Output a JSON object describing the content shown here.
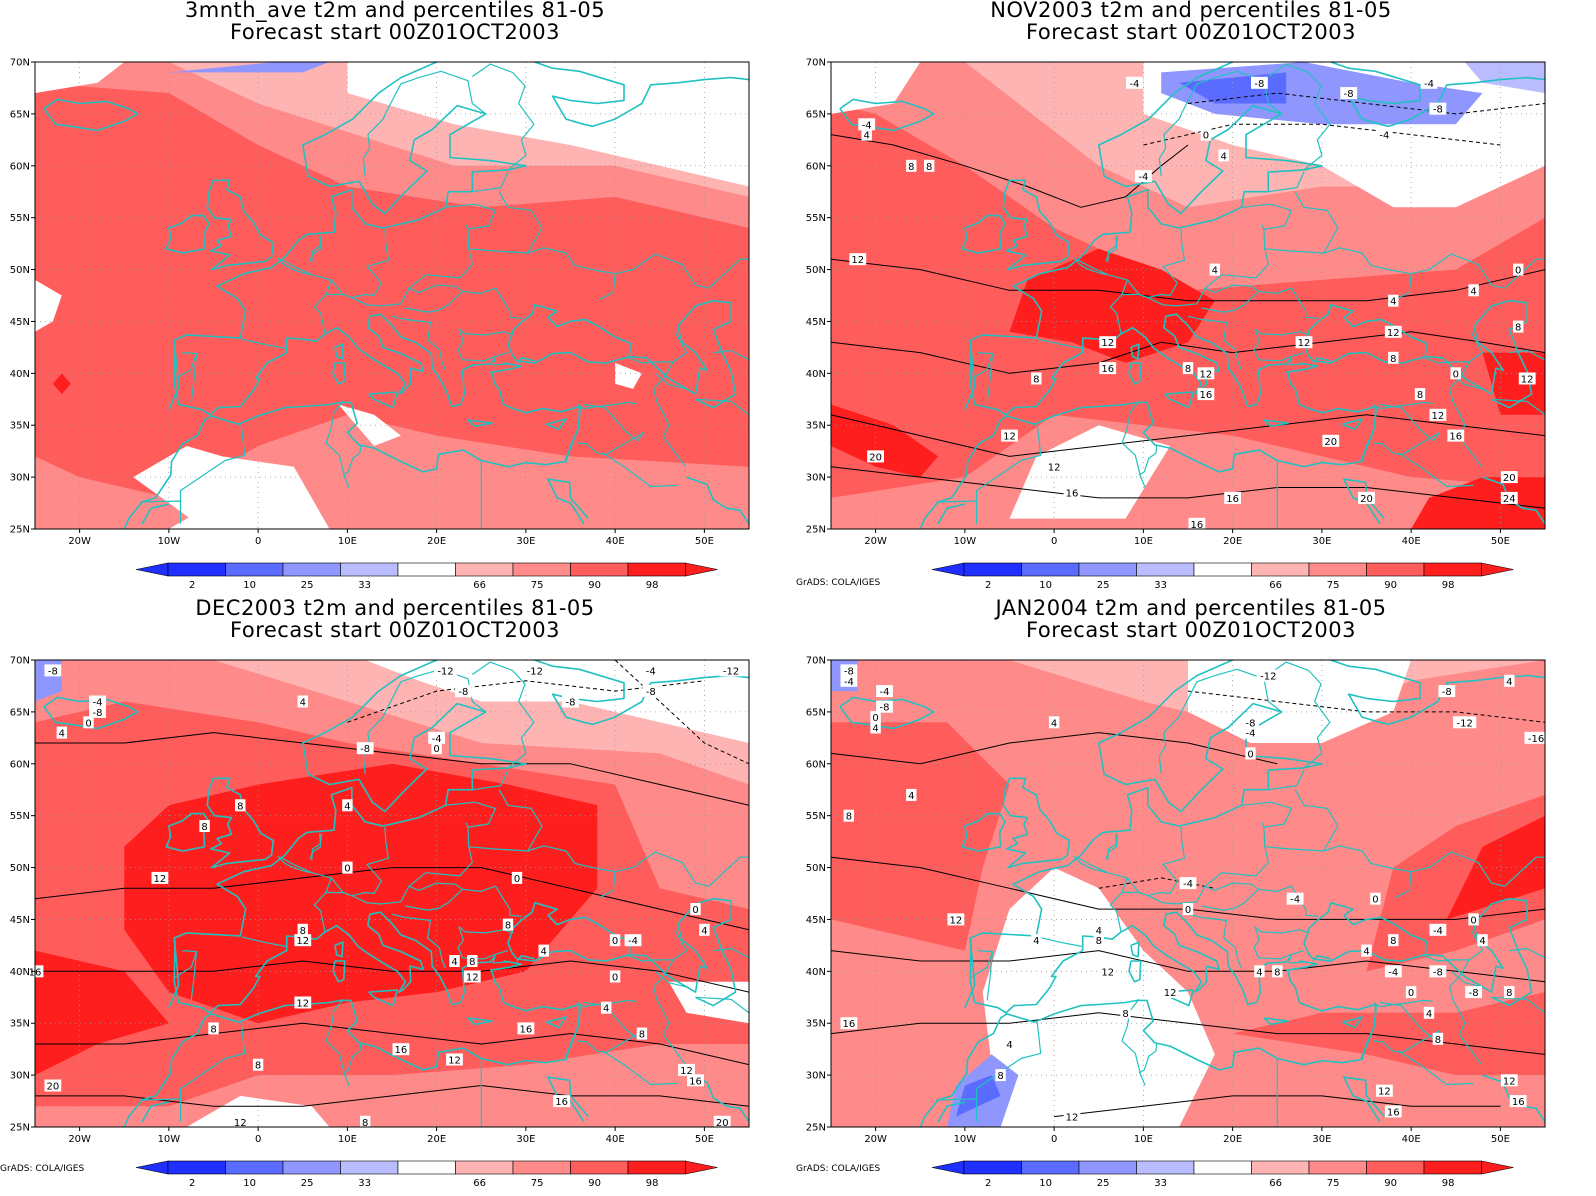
{
  "credit": "GrADS: COLA/IGES",
  "palette": {
    "p2": "#1f2fff",
    "p10": "#5a6bff",
    "p25": "#8f97ff",
    "p33": "#b9bdff",
    "mid": "#ffffff",
    "p66": "#ffb4b4",
    "p75": "#ff8a8a",
    "p90": "#ff5c5c",
    "p98": "#ff1e1e",
    "coast": "#22c1c1",
    "contour": "#000000"
  },
  "colorbar": {
    "labels": [
      "2",
      "10",
      "25",
      "33",
      "66",
      "75",
      "90",
      "98"
    ]
  },
  "axes": {
    "lon_ticks": [
      "20W",
      "10W",
      "0",
      "10E",
      "20E",
      "30E",
      "40E",
      "50E"
    ],
    "lat_ticks": [
      "70N",
      "65N",
      "60N",
      "55N",
      "50N",
      "45N",
      "40N",
      "35N",
      "30N",
      "25N"
    ],
    "lon_range": [
      -25,
      55
    ],
    "lat_range": [
      25,
      70
    ]
  },
  "panels": [
    {
      "title1": "3mnth_ave t2m and percentiles 81-05",
      "title2": "Forecast start 00Z01OCT2003",
      "show_credit": false,
      "contour_labels": []
    },
    {
      "title1": "NOV2003 t2m and percentiles 81-05",
      "title2": "Forecast start 00Z01OCT2003",
      "show_credit": true,
      "contour_labels": [
        {
          "lon": 33,
          "lat": 67,
          "text": "-8"
        },
        {
          "lon": 23,
          "lat": 68,
          "text": "-8"
        },
        {
          "lon": 17,
          "lat": 63,
          "text": "0"
        },
        {
          "lon": 10,
          "lat": 59,
          "text": "-4"
        },
        {
          "lon": 19,
          "lat": 61,
          "text": "4"
        },
        {
          "lon": 42,
          "lat": 68,
          "text": "-4"
        },
        {
          "lon": 43,
          "lat": 65.5,
          "text": "-8"
        },
        {
          "lon": 37,
          "lat": 63,
          "text": "-4"
        },
        {
          "lon": 9,
          "lat": 68,
          "text": "-4"
        },
        {
          "lon": -21,
          "lat": 64,
          "text": "-4"
        },
        {
          "lon": -21,
          "lat": 63,
          "text": "4"
        },
        {
          "lon": -16,
          "lat": 60,
          "text": "8"
        },
        {
          "lon": -14,
          "lat": 60,
          "text": "8"
        },
        {
          "lon": -22,
          "lat": 51,
          "text": "12"
        },
        {
          "lon": 18,
          "lat": 50,
          "text": "4"
        },
        {
          "lon": 38,
          "lat": 47,
          "text": "4"
        },
        {
          "lon": 47,
          "lat": 48,
          "text": "4"
        },
        {
          "lon": 52,
          "lat": 50,
          "text": "0"
        },
        {
          "lon": 52,
          "lat": 44.5,
          "text": "8"
        },
        {
          "lon": 6,
          "lat": 43,
          "text": "12"
        },
        {
          "lon": 6,
          "lat": 40.5,
          "text": "16"
        },
        {
          "lon": 38,
          "lat": 44,
          "text": "12"
        },
        {
          "lon": 28,
          "lat": 43,
          "text": "12"
        },
        {
          "lon": 38,
          "lat": 41.5,
          "text": "8"
        },
        {
          "lon": 45,
          "lat": 40,
          "text": "0"
        },
        {
          "lon": 53,
          "lat": 39.5,
          "text": "12"
        },
        {
          "lon": 15,
          "lat": 40.5,
          "text": "8"
        },
        {
          "lon": 17,
          "lat": 40,
          "text": "12"
        },
        {
          "lon": 17,
          "lat": 38,
          "text": "16"
        },
        {
          "lon": -2,
          "lat": 39.5,
          "text": "8"
        },
        {
          "lon": 41,
          "lat": 38,
          "text": "8"
        },
        {
          "lon": 43,
          "lat": 36,
          "text": "12"
        },
        {
          "lon": 45,
          "lat": 34,
          "text": "16"
        },
        {
          "lon": -5,
          "lat": 34,
          "text": "12"
        },
        {
          "lon": -20,
          "lat": 32,
          "text": "20"
        },
        {
          "lon": 0,
          "lat": 31,
          "text": "12"
        },
        {
          "lon": 2,
          "lat": 28.5,
          "text": "16"
        },
        {
          "lon": 31,
          "lat": 33.5,
          "text": "20"
        },
        {
          "lon": 51,
          "lat": 30,
          "text": "20"
        },
        {
          "lon": 20,
          "lat": 28,
          "text": "16"
        },
        {
          "lon": 16,
          "lat": 25.5,
          "text": "16"
        },
        {
          "lon": 35,
          "lat": 28,
          "text": "20"
        },
        {
          "lon": 51,
          "lat": 28,
          "text": "24"
        }
      ]
    },
    {
      "title1": "DEC2003 t2m and percentiles 81-05",
      "title2": "Forecast start 00Z01OCT2003",
      "show_credit": true,
      "contour_labels": [
        {
          "lon": -23,
          "lat": 69,
          "text": "-8"
        },
        {
          "lon": -18,
          "lat": 66,
          "text": "-4"
        },
        {
          "lon": -18,
          "lat": 65,
          "text": "-8"
        },
        {
          "lon": -19,
          "lat": 64,
          "text": "0"
        },
        {
          "lon": -22,
          "lat": 63,
          "text": "4"
        },
        {
          "lon": 5,
          "lat": 66,
          "text": "4"
        },
        {
          "lon": 12,
          "lat": 61.5,
          "text": "-8"
        },
        {
          "lon": 21,
          "lat": 69,
          "text": "-12"
        },
        {
          "lon": 23,
          "lat": 67,
          "text": "-8"
        },
        {
          "lon": 20,
          "lat": 62.5,
          "text": "-4"
        },
        {
          "lon": 20,
          "lat": 61.5,
          "text": "0"
        },
        {
          "lon": 31,
          "lat": 69,
          "text": "-12"
        },
        {
          "lon": 35,
          "lat": 66,
          "text": "-8"
        },
        {
          "lon": 44,
          "lat": 69,
          "text": "-4"
        },
        {
          "lon": 44,
          "lat": 67,
          "text": "-8"
        },
        {
          "lon": 53,
          "lat": 69,
          "text": "-12"
        },
        {
          "lon": -2,
          "lat": 56,
          "text": "8"
        },
        {
          "lon": -6,
          "lat": 54,
          "text": "8"
        },
        {
          "lon": 10,
          "lat": 56,
          "text": "4"
        },
        {
          "lon": 10,
          "lat": 50,
          "text": "0"
        },
        {
          "lon": 29,
          "lat": 49,
          "text": "0"
        },
        {
          "lon": -11,
          "lat": 49,
          "text": "12"
        },
        {
          "lon": 28,
          "lat": 44.5,
          "text": "8"
        },
        {
          "lon": 42,
          "lat": 43,
          "text": "-4"
        },
        {
          "lon": 40,
          "lat": 43,
          "text": "0"
        },
        {
          "lon": 49,
          "lat": 46,
          "text": "0"
        },
        {
          "lon": 50,
          "lat": 44,
          "text": "4"
        },
        {
          "lon": 32,
          "lat": 42,
          "text": "4"
        },
        {
          "lon": 22,
          "lat": 41,
          "text": "4"
        },
        {
          "lon": 24,
          "lat": 41,
          "text": "8"
        },
        {
          "lon": 24,
          "lat": 39.5,
          "text": "12"
        },
        {
          "lon": 40,
          "lat": 39.5,
          "text": "0"
        },
        {
          "lon": 5,
          "lat": 44,
          "text": "8"
        },
        {
          "lon": 5,
          "lat": 43,
          "text": "12"
        },
        {
          "lon": -25,
          "lat": 40,
          "text": "16"
        },
        {
          "lon": 5,
          "lat": 37,
          "text": "12"
        },
        {
          "lon": 39,
          "lat": 36.5,
          "text": "4"
        },
        {
          "lon": -5,
          "lat": 34.5,
          "text": "8"
        },
        {
          "lon": 30,
          "lat": 34.5,
          "text": "16"
        },
        {
          "lon": 43,
          "lat": 34,
          "text": "8"
        },
        {
          "lon": 16,
          "lat": 32.5,
          "text": "16"
        },
        {
          "lon": 22,
          "lat": 31.5,
          "text": "12"
        },
        {
          "lon": 0,
          "lat": 31,
          "text": "8"
        },
        {
          "lon": 48,
          "lat": 30.5,
          "text": "12"
        },
        {
          "lon": 49,
          "lat": 29.5,
          "text": "16"
        },
        {
          "lon": 34,
          "lat": 27.5,
          "text": "16"
        },
        {
          "lon": -23,
          "lat": 29,
          "text": "20"
        },
        {
          "lon": 52,
          "lat": 25.5,
          "text": "20"
        },
        {
          "lon": -2,
          "lat": 25.5,
          "text": "12"
        },
        {
          "lon": 12,
          "lat": 25.5,
          "text": "8"
        }
      ]
    },
    {
      "title1": "JAN2004 t2m and percentiles 81-05",
      "title2": "Forecast start 00Z01OCT2003",
      "show_credit": true,
      "contour_labels": [
        {
          "lon": -23,
          "lat": 69,
          "text": "-8"
        },
        {
          "lon": -23,
          "lat": 68,
          "text": "-4"
        },
        {
          "lon": -19,
          "lat": 67,
          "text": "-4"
        },
        {
          "lon": -19,
          "lat": 65.5,
          "text": "-8"
        },
        {
          "lon": -20,
          "lat": 64.5,
          "text": "0"
        },
        {
          "lon": -20,
          "lat": 63.5,
          "text": "4"
        },
        {
          "lon": 0,
          "lat": 64,
          "text": "4"
        },
        {
          "lon": 24,
          "lat": 68.5,
          "text": "-12"
        },
        {
          "lon": 22,
          "lat": 64,
          "text": "-8"
        },
        {
          "lon": 22,
          "lat": 63,
          "text": "-4"
        },
        {
          "lon": 22,
          "lat": 61,
          "text": "0"
        },
        {
          "lon": 44,
          "lat": 67,
          "text": "-8"
        },
        {
          "lon": 51,
          "lat": 68,
          "text": "4"
        },
        {
          "lon": 46,
          "lat": 64,
          "text": "-12"
        },
        {
          "lon": 54,
          "lat": 62.5,
          "text": "-16"
        },
        {
          "lon": -16,
          "lat": 57,
          "text": "4"
        },
        {
          "lon": -23,
          "lat": 55,
          "text": "8"
        },
        {
          "lon": 15,
          "lat": 48.5,
          "text": "-4"
        },
        {
          "lon": 15,
          "lat": 46,
          "text": "0"
        },
        {
          "lon": 27,
          "lat": 47,
          "text": "-4"
        },
        {
          "lon": 36,
          "lat": 47,
          "text": "0"
        },
        {
          "lon": 47,
          "lat": 45,
          "text": "0"
        },
        {
          "lon": 43,
          "lat": 44,
          "text": "-4"
        },
        {
          "lon": -11,
          "lat": 45,
          "text": "12"
        },
        {
          "lon": 5,
          "lat": 44,
          "text": "4"
        },
        {
          "lon": 5,
          "lat": 43,
          "text": "8"
        },
        {
          "lon": -2,
          "lat": 43,
          "text": "4"
        },
        {
          "lon": 35,
          "lat": 42,
          "text": "4"
        },
        {
          "lon": 38,
          "lat": 43,
          "text": "8"
        },
        {
          "lon": 48,
          "lat": 43,
          "text": "4"
        },
        {
          "lon": 38,
          "lat": 40,
          "text": "-4"
        },
        {
          "lon": 43,
          "lat": 40,
          "text": "-8"
        },
        {
          "lon": 47,
          "lat": 38,
          "text": "-8"
        },
        {
          "lon": 51,
          "lat": 38,
          "text": "8"
        },
        {
          "lon": 23,
          "lat": 40,
          "text": "4"
        },
        {
          "lon": 25,
          "lat": 40,
          "text": "8"
        },
        {
          "lon": 6,
          "lat": 40,
          "text": "12"
        },
        {
          "lon": 13,
          "lat": 38,
          "text": "12"
        },
        {
          "lon": 40,
          "lat": 38,
          "text": "0"
        },
        {
          "lon": 42,
          "lat": 36,
          "text": "4"
        },
        {
          "lon": 43,
          "lat": 33.5,
          "text": "8"
        },
        {
          "lon": -23,
          "lat": 35,
          "text": "16"
        },
        {
          "lon": 8,
          "lat": 36,
          "text": "8"
        },
        {
          "lon": -5,
          "lat": 33,
          "text": "4"
        },
        {
          "lon": -6,
          "lat": 30,
          "text": "8"
        },
        {
          "lon": 37,
          "lat": 28.5,
          "text": "12"
        },
        {
          "lon": 51,
          "lat": 29.5,
          "text": "12"
        },
        {
          "lon": 52,
          "lat": 27.5,
          "text": "16"
        },
        {
          "lon": 38,
          "lat": 26.5,
          "text": "16"
        },
        {
          "lon": 2,
          "lat": 26,
          "text": "12"
        }
      ]
    }
  ]
}
